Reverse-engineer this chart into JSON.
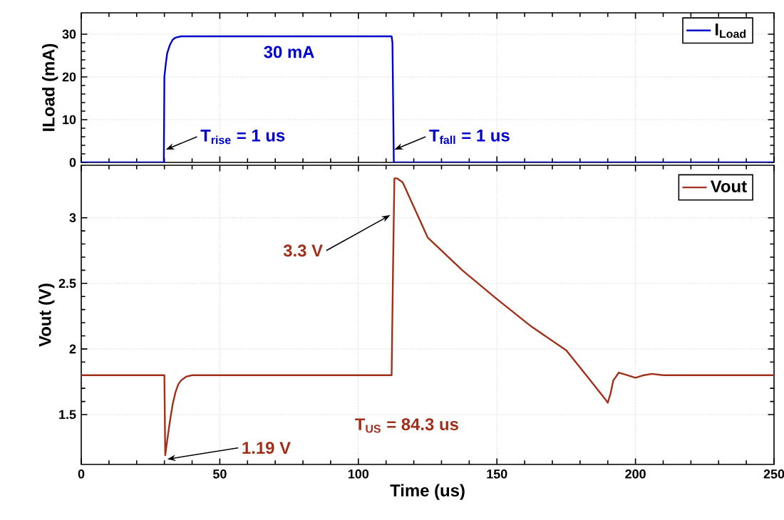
{
  "chart_data": [
    {
      "type": "line",
      "ylabel": "ILoad (mA)",
      "xlim": [
        0,
        250
      ],
      "ylim": [
        0,
        35
      ],
      "yticks": [
        0,
        10,
        20,
        30
      ],
      "xticks": [
        0,
        50,
        100,
        150,
        200,
        250
      ],
      "tick_labels": "y",
      "grid": true,
      "legend": "top right",
      "series": [
        {
          "name": "I$_{Load}$",
          "color": "#0000cc",
          "x": [
            0,
            29.8,
            30,
            30.5,
            31,
            32,
            33,
            34,
            36,
            40,
            112,
            112.3,
            112.8,
            250
          ],
          "values": [
            0,
            0,
            20,
            23,
            25.5,
            27.5,
            28.7,
            29.2,
            29.5,
            29.5,
            29.5,
            28,
            0,
            0
          ]
        }
      ],
      "annotations": [
        {
          "text": "30 mA",
          "x": 75,
          "y": 29.5
        },
        {
          "text": "T$_{rise}$ = 1 us",
          "x": 30.5,
          "y": 3
        },
        {
          "text": "T$_{fall}$ = 1 us",
          "x": 113,
          "y": 3
        }
      ]
    },
    {
      "type": "line",
      "xlabel": "Time (us)",
      "ylabel": "Vout (V)",
      "xlim": [
        0,
        250
      ],
      "ylim": [
        1.12,
        3.4
      ],
      "xticks": [
        0,
        50,
        100,
        150,
        200,
        250
      ],
      "yticks": [
        1.5,
        2,
        2.5,
        3
      ],
      "grid": true,
      "legend": "top right",
      "series": [
        {
          "name": "Vout",
          "color": "#a0301a",
          "x": [
            0,
            30,
            30.3,
            31,
            32,
            33,
            34,
            35,
            36,
            38,
            40,
            50,
            112,
            112.5,
            113,
            114,
            116,
            125,
            137.5,
            150,
            162.5,
            175,
            183,
            189,
            190,
            191,
            192,
            194,
            197,
            200,
            203,
            206,
            210,
            250
          ],
          "values": [
            1.8,
            1.8,
            1.19,
            1.3,
            1.45,
            1.58,
            1.67,
            1.73,
            1.76,
            1.79,
            1.8,
            1.8,
            1.8,
            2.6,
            3.3,
            3.3,
            3.27,
            2.85,
            2.6,
            2.38,
            2.17,
            1.99,
            1.78,
            1.62,
            1.59,
            1.66,
            1.76,
            1.82,
            1.8,
            1.78,
            1.8,
            1.81,
            1.8,
            1.8
          ]
        }
      ],
      "annotations": [
        {
          "text": "3.3 V",
          "x": 111.5,
          "y": 3.02
        },
        {
          "text": "1.19 V",
          "x": 31,
          "y": 1.16
        },
        "T$_{US}$ = 84.3 us"
      ]
    }
  ]
}
